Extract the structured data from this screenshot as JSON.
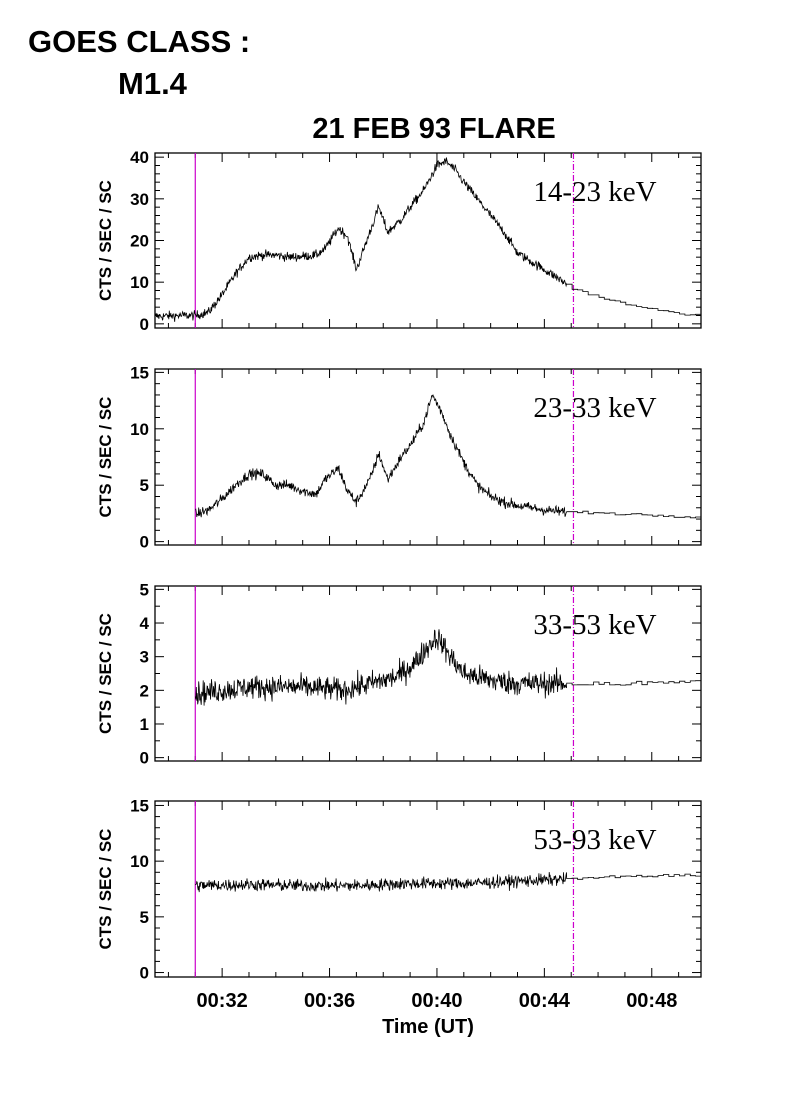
{
  "header": {
    "goes_label": "GOES CLASS :",
    "goes_value": "M1.4"
  },
  "chart_data": {
    "type": "line",
    "title": "21 FEB 93 FLARE",
    "xlabel": "Time (UT)",
    "xlim": [
      "00:29:30",
      "00:49:50"
    ],
    "x_ticks": [
      "00:32",
      "00:36",
      "00:40",
      "00:44",
      "00:48"
    ],
    "markers": [
      {
        "time": "00:31:00",
        "style": "solid",
        "color": "#cc00cc"
      },
      {
        "time": "00:45:05",
        "style": "dash-dot",
        "color": "#cc00cc"
      }
    ],
    "panels": [
      {
        "band": "14-23 keV",
        "ylabel": "CTS / SEC / SC",
        "ylim": [
          -1,
          41
        ],
        "y_ticks": [
          0,
          10,
          20,
          30,
          40
        ],
        "series": {
          "x": [
            "00:29:30",
            "00:30:30",
            "00:31:00",
            "00:31:30",
            "00:32:00",
            "00:32:30",
            "00:33:00",
            "00:33:30",
            "00:34:00",
            "00:34:30",
            "00:35:00",
            "00:35:30",
            "00:35:50",
            "00:36:20",
            "00:36:40",
            "00:37:00",
            "00:37:30",
            "00:37:50",
            "00:38:10",
            "00:38:40",
            "00:39:00",
            "00:39:30",
            "00:40:00",
            "00:40:20",
            "00:40:40",
            "00:41:00",
            "00:41:30",
            "00:42:00",
            "00:42:30",
            "00:43:00",
            "00:43:30",
            "00:44:00",
            "00:44:30",
            "00:44:50",
            "00:45:00",
            "00:45:30",
            "00:46:00",
            "00:46:30",
            "00:47:00",
            "00:47:30",
            "00:48:00",
            "00:48:30",
            "00:49:00",
            "00:49:50"
          ],
          "y": [
            1.8,
            2.0,
            2.0,
            2.8,
            7,
            12,
            16,
            16.5,
            16.5,
            16,
            16.2,
            16.5,
            18,
            23,
            21,
            13,
            22,
            28,
            22,
            25,
            28,
            32,
            38,
            39,
            37,
            34,
            30,
            26,
            22,
            17,
            15,
            13,
            11,
            9.5,
            8.5,
            7.5,
            6.5,
            5.5,
            4.8,
            4.0,
            3.5,
            3.0,
            2.5,
            2.2
          ],
          "noise": 1.1
        }
      },
      {
        "band": "23-33 keV",
        "ylabel": "CTS / SEC / SC",
        "ylim": [
          -0.3,
          15.3
        ],
        "y_ticks": [
          0,
          5,
          10,
          15
        ],
        "series": {
          "x": [
            "00:31:00",
            "00:31:30",
            "00:32:00",
            "00:32:30",
            "00:33:00",
            "00:33:30",
            "00:34:00",
            "00:34:30",
            "00:35:00",
            "00:35:30",
            "00:35:50",
            "00:36:20",
            "00:36:40",
            "00:37:00",
            "00:37:30",
            "00:37:50",
            "00:38:10",
            "00:38:40",
            "00:39:00",
            "00:39:30",
            "00:39:50",
            "00:40:10",
            "00:40:30",
            "00:41:00",
            "00:41:30",
            "00:42:00",
            "00:42:30",
            "00:43:00",
            "00:43:30",
            "00:44:00",
            "00:44:30",
            "00:44:50",
            "00:45:30",
            "00:46:30",
            "00:47:30",
            "00:48:30",
            "00:49:50"
          ],
          "y": [
            2.4,
            2.8,
            3.8,
            5.0,
            6.0,
            6.0,
            5.0,
            5.0,
            4.5,
            4.2,
            5.5,
            6.5,
            4.5,
            3.5,
            5.5,
            7.8,
            5.5,
            7.5,
            8.5,
            10.5,
            13.0,
            11.5,
            9.5,
            7.0,
            5.0,
            4.0,
            3.5,
            3.2,
            3.0,
            2.8,
            2.7,
            2.6,
            2.6,
            2.5,
            2.4,
            2.3,
            2.2
          ],
          "noise": 0.45
        }
      },
      {
        "band": "33-53 keV",
        "ylabel": "CTS / SEC / SC",
        "ylim": [
          -0.1,
          5.1
        ],
        "y_ticks": [
          0,
          1,
          2,
          3,
          4,
          5
        ],
        "series": {
          "x": [
            "00:31:00",
            "00:33:00",
            "00:35:00",
            "00:36:30",
            "00:37:30",
            "00:38:30",
            "00:39:10",
            "00:39:40",
            "00:40:00",
            "00:40:30",
            "00:41:00",
            "00:42:00",
            "00:43:00",
            "00:44:00",
            "00:44:50",
            "00:46:00",
            "00:47:00",
            "00:48:00",
            "00:49:50"
          ],
          "y": [
            1.9,
            2.1,
            2.1,
            2.0,
            2.2,
            2.4,
            2.8,
            3.3,
            3.6,
            3.0,
            2.5,
            2.3,
            2.2,
            2.2,
            2.2,
            2.2,
            2.2,
            2.2,
            2.3
          ],
          "noise": 0.35
        }
      },
      {
        "band": "53-93 keV",
        "ylabel": "CTS / SEC / SC",
        "ylim": [
          -0.4,
          15.4
        ],
        "y_ticks": [
          0,
          5,
          10,
          15
        ],
        "series": {
          "x": [
            "00:31:00",
            "00:33:00",
            "00:35:00",
            "00:37:00",
            "00:39:00",
            "00:41:00",
            "00:43:00",
            "00:44:50",
            "00:45:30",
            "00:47:00",
            "00:48:30",
            "00:49:50"
          ],
          "y": [
            7.8,
            7.9,
            7.8,
            7.8,
            8.0,
            8.0,
            8.2,
            8.4,
            8.5,
            8.6,
            8.7,
            8.8
          ],
          "noise": 0.55
        }
      }
    ]
  }
}
